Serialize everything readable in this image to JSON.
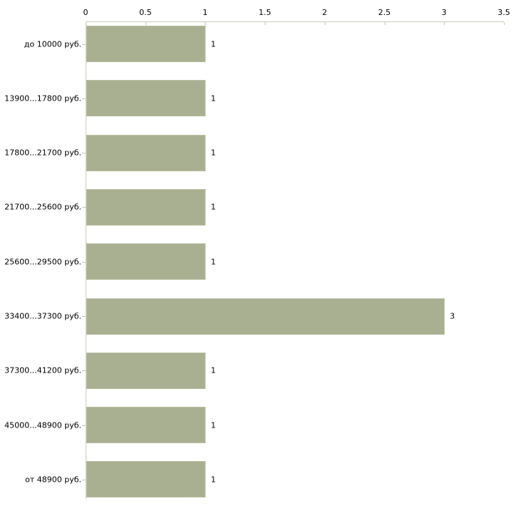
{
  "chart_data": {
    "type": "bar",
    "orientation": "horizontal",
    "title": "",
    "xlabel": "",
    "ylabel": "",
    "categories": [
      "до 10000 руб.",
      "13900...17800 руб.",
      "17800...21700 руб.",
      "21700...25600 руб.",
      "25600...29500 руб.",
      "33400...37300 руб.",
      "37300...41200 руб.",
      "45000...48900 руб.",
      "от 48900 руб."
    ],
    "values": [
      1,
      1,
      1,
      1,
      1,
      3,
      1,
      1,
      1
    ],
    "value_labels": [
      "1",
      "1",
      "1",
      "1",
      "1",
      "3",
      "1",
      "1",
      "1"
    ],
    "x_tick_labels": [
      "0",
      "0.5",
      "1",
      "1.5",
      "2",
      "2.5",
      "3",
      "3.5"
    ],
    "x_ticks": [
      0,
      0.5,
      1,
      1.5,
      2,
      2.5,
      3,
      3.5
    ],
    "xlim": [
      0,
      3.5
    ],
    "grid": false,
    "legend": "none",
    "colors": {
      "bar_fill": "#a9b092",
      "bar_edge": "#b7bd9f",
      "axis_line": "#ccccba",
      "tick_mark": "#c5c5ae",
      "text": "#000000",
      "background": "#ffffff"
    }
  }
}
